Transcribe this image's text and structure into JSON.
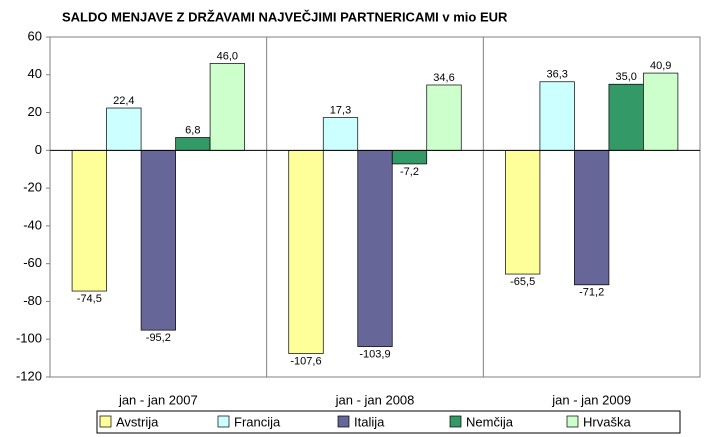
{
  "chart_data": {
    "type": "bar",
    "title": "SALDO MENJAVE Z DRŽAVAMI NAJVEČJIMI PARTNERICAMI v mio EUR",
    "categories": [
      "jan - jan 2007",
      "jan - jan 2008",
      "jan - jan 2009"
    ],
    "series": [
      {
        "name": "Avstrija",
        "color": "#ffff99",
        "values": [
          -74.5,
          -107.6,
          -65.5
        ],
        "value_labels": [
          "-74,5",
          "-107,6",
          "-65,5"
        ]
      },
      {
        "name": "Francija",
        "color": "#ccffff",
        "values": [
          22.4,
          17.3,
          36.3
        ],
        "value_labels": [
          "22,4",
          "17,3",
          "36,3"
        ]
      },
      {
        "name": "Italija",
        "color": "#666699",
        "values": [
          -95.2,
          -103.9,
          -71.2
        ],
        "value_labels": [
          "-95,2",
          "-103,9",
          "-71,2"
        ]
      },
      {
        "name": "Nemčija",
        "color": "#339966",
        "values": [
          6.8,
          -7.2,
          35.0
        ],
        "value_labels": [
          "6,8",
          "-7,2",
          "35,0"
        ]
      },
      {
        "name": "Hrvaška",
        "color": "#ccffcc",
        "values": [
          46.0,
          34.6,
          40.9
        ],
        "value_labels": [
          "46,0",
          "34,6",
          "40,9"
        ]
      }
    ],
    "ylim": [
      -120,
      60
    ],
    "yticks": [
      -120,
      -100,
      -80,
      -60,
      -40,
      -20,
      0,
      20,
      40,
      60
    ],
    "grid": false,
    "legend": "bottom"
  }
}
